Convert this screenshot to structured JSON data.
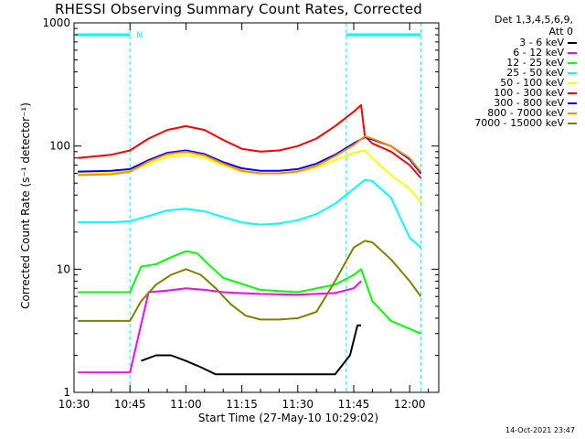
{
  "chart_data": {
    "type": "line",
    "title": "RHESSI Observing Summary Count Rates, Corrected",
    "ylabel": "Corrected Count Rate (s⁻¹ detector⁻¹)",
    "xlabel": "Start Time (27-May-10 10:29:02)",
    "y_scale": "log",
    "ylim": [
      1,
      1000
    ],
    "xlim_minutes": [
      10.5,
      12.13
    ],
    "x_ticks": [
      "10:30",
      "10:45",
      "11:00",
      "11:15",
      "11:30",
      "11:45",
      "12:00"
    ],
    "y_ticks": [
      "1",
      "10",
      "100",
      "1000"
    ],
    "legend_header": [
      "Det 1,3,4,5,6,9,",
      "Att 0"
    ],
    "legend_position": "right",
    "footer": "14-Oct-2021 23:47",
    "annotation": "N",
    "attenuator_bar_value": 800,
    "night_boundaries": [
      "10:45",
      "11:43",
      "12:03"
    ],
    "series": [
      {
        "name": "3 - 6 keV",
        "color": "#000000",
        "x": [
          "10:48",
          "10:52",
          "10:56",
          "11:00",
          "11:04",
          "11:08",
          "11:40",
          "11:44",
          "11:46",
          "11:47"
        ],
        "values": [
          1.8,
          2.0,
          2.0,
          1.8,
          1.6,
          1.4,
          1.4,
          2.0,
          3.5,
          3.5
        ]
      },
      {
        "name": "6 - 12 keV",
        "color": "#ff00ff",
        "x": [
          "10:31",
          "10:40",
          "10:45",
          "10:50",
          "10:55",
          "11:00",
          "11:05",
          "11:10",
          "11:20",
          "11:30",
          "11:40",
          "11:45",
          "11:47"
        ],
        "values": [
          1.45,
          1.45,
          1.45,
          6.5,
          6.7,
          7.0,
          6.8,
          6.5,
          6.3,
          6.2,
          6.4,
          7.0,
          8.0
        ]
      },
      {
        "name": "12 - 25 keV",
        "color": "#00ff00",
        "x": [
          "10:31",
          "10:45",
          "10:48",
          "10:52",
          "10:56",
          "11:00",
          "11:03",
          "11:06",
          "11:10",
          "11:20",
          "11:30",
          "11:40",
          "11:45",
          "11:47",
          "11:50",
          "11:55",
          "12:03"
        ],
        "values": [
          6.5,
          6.5,
          10.5,
          11.0,
          12.5,
          14.0,
          13.5,
          11.0,
          8.5,
          6.8,
          6.5,
          7.5,
          9.0,
          10.0,
          5.5,
          3.8,
          3.0
        ]
      },
      {
        "name": "25 - 50 keV",
        "color": "#00ffff",
        "x": [
          "10:31",
          "10:40",
          "10:45",
          "10:50",
          "10:55",
          "11:00",
          "11:05",
          "11:10",
          "11:15",
          "11:20",
          "11:25",
          "11:30",
          "11:35",
          "11:40",
          "11:45",
          "11:48",
          "11:50",
          "11:55",
          "12:00",
          "12:03"
        ],
        "values": [
          24.0,
          24.0,
          24.5,
          27.0,
          30.0,
          31.0,
          29.5,
          26.5,
          24.0,
          23.0,
          23.5,
          25.0,
          28.0,
          34.0,
          45.0,
          53.0,
          52.0,
          38.0,
          18.0,
          15.0
        ]
      },
      {
        "name": "50 - 100 keV",
        "color": "#ffff00",
        "x": [
          "10:31",
          "10:40",
          "10:45",
          "10:50",
          "10:55",
          "11:00",
          "11:05",
          "11:10",
          "11:15",
          "11:20",
          "11:25",
          "11:30",
          "11:35",
          "11:40",
          "11:45",
          "11:48",
          "11:50",
          "11:55",
          "12:00",
          "12:03"
        ],
        "values": [
          60.0,
          61.0,
          63.0,
          72.0,
          82.0,
          85.0,
          80.0,
          70.0,
          62.0,
          60.0,
          60.0,
          62.0,
          67.0,
          77.0,
          88.0,
          92.0,
          80.0,
          58.0,
          45.0,
          35.0
        ]
      },
      {
        "name": "100 - 300 keV",
        "color": "#ff0000",
        "x": [
          "10:31",
          "10:40",
          "10:45",
          "10:50",
          "10:55",
          "11:00",
          "11:05",
          "11:10",
          "11:15",
          "11:20",
          "11:25",
          "11:30",
          "11:35",
          "11:40",
          "11:45",
          "11:47",
          "11:48",
          "11:50",
          "11:55",
          "12:00",
          "12:03"
        ],
        "values": [
          80.0,
          85.0,
          92.0,
          115.0,
          135.0,
          145.0,
          135.0,
          112.0,
          95.0,
          90.0,
          92.0,
          100.0,
          115.0,
          145.0,
          190.0,
          215.0,
          120.0,
          105.0,
          90.0,
          70.0,
          55.0
        ]
      },
      {
        "name": "300 - 800 keV",
        "color": "#0000ff",
        "x": [
          "10:31",
          "10:40",
          "10:45",
          "10:50",
          "10:55",
          "11:00",
          "11:05",
          "11:10",
          "11:15",
          "11:20",
          "11:25",
          "11:30",
          "11:35",
          "11:40",
          "11:45",
          "11:48",
          "11:50",
          "11:55",
          "12:00",
          "12:03"
        ],
        "values": [
          62.0,
          63.0,
          65.0,
          77.0,
          88.0,
          92.0,
          86.0,
          74.0,
          66.0,
          63.0,
          63.0,
          65.0,
          72.0,
          85.0,
          105.0,
          118.0,
          113.0,
          100.0,
          78.0,
          60.0
        ]
      },
      {
        "name": "800 - 7000 keV",
        "color": "#ff8c00",
        "x": [
          "10:31",
          "10:40",
          "10:45",
          "10:50",
          "10:55",
          "11:00",
          "11:05",
          "11:10",
          "11:15",
          "11:20",
          "11:25",
          "11:30",
          "11:35",
          "11:40",
          "11:45",
          "11:48",
          "11:50",
          "11:55",
          "12:00",
          "12:03"
        ],
        "values": [
          58.0,
          59.0,
          62.0,
          75.0,
          86.0,
          90.0,
          84.0,
          72.0,
          63.0,
          60.0,
          60.0,
          62.0,
          69.0,
          83.0,
          102.0,
          120.0,
          115.0,
          100.0,
          80.0,
          62.0
        ]
      },
      {
        "name": "7000 - 15000 keV",
        "color": "#808000",
        "x": [
          "10:31",
          "10:40",
          "10:45",
          "10:48",
          "10:52",
          "10:56",
          "11:00",
          "11:04",
          "11:08",
          "11:12",
          "11:16",
          "11:20",
          "11:25",
          "11:30",
          "11:35",
          "11:40",
          "11:45",
          "11:48",
          "11:50",
          "11:55",
          "12:00",
          "12:03"
        ],
        "values": [
          3.8,
          3.8,
          3.8,
          5.5,
          7.5,
          9.0,
          10.0,
          9.0,
          7.0,
          5.2,
          4.2,
          3.9,
          3.9,
          4.0,
          4.5,
          8.0,
          15.0,
          17.0,
          16.5,
          12.0,
          8.0,
          6.0
        ]
      }
    ],
    "colors": {
      "axis": "#000000",
      "boundary": "#00ffff",
      "background": "#ffffff"
    }
  }
}
